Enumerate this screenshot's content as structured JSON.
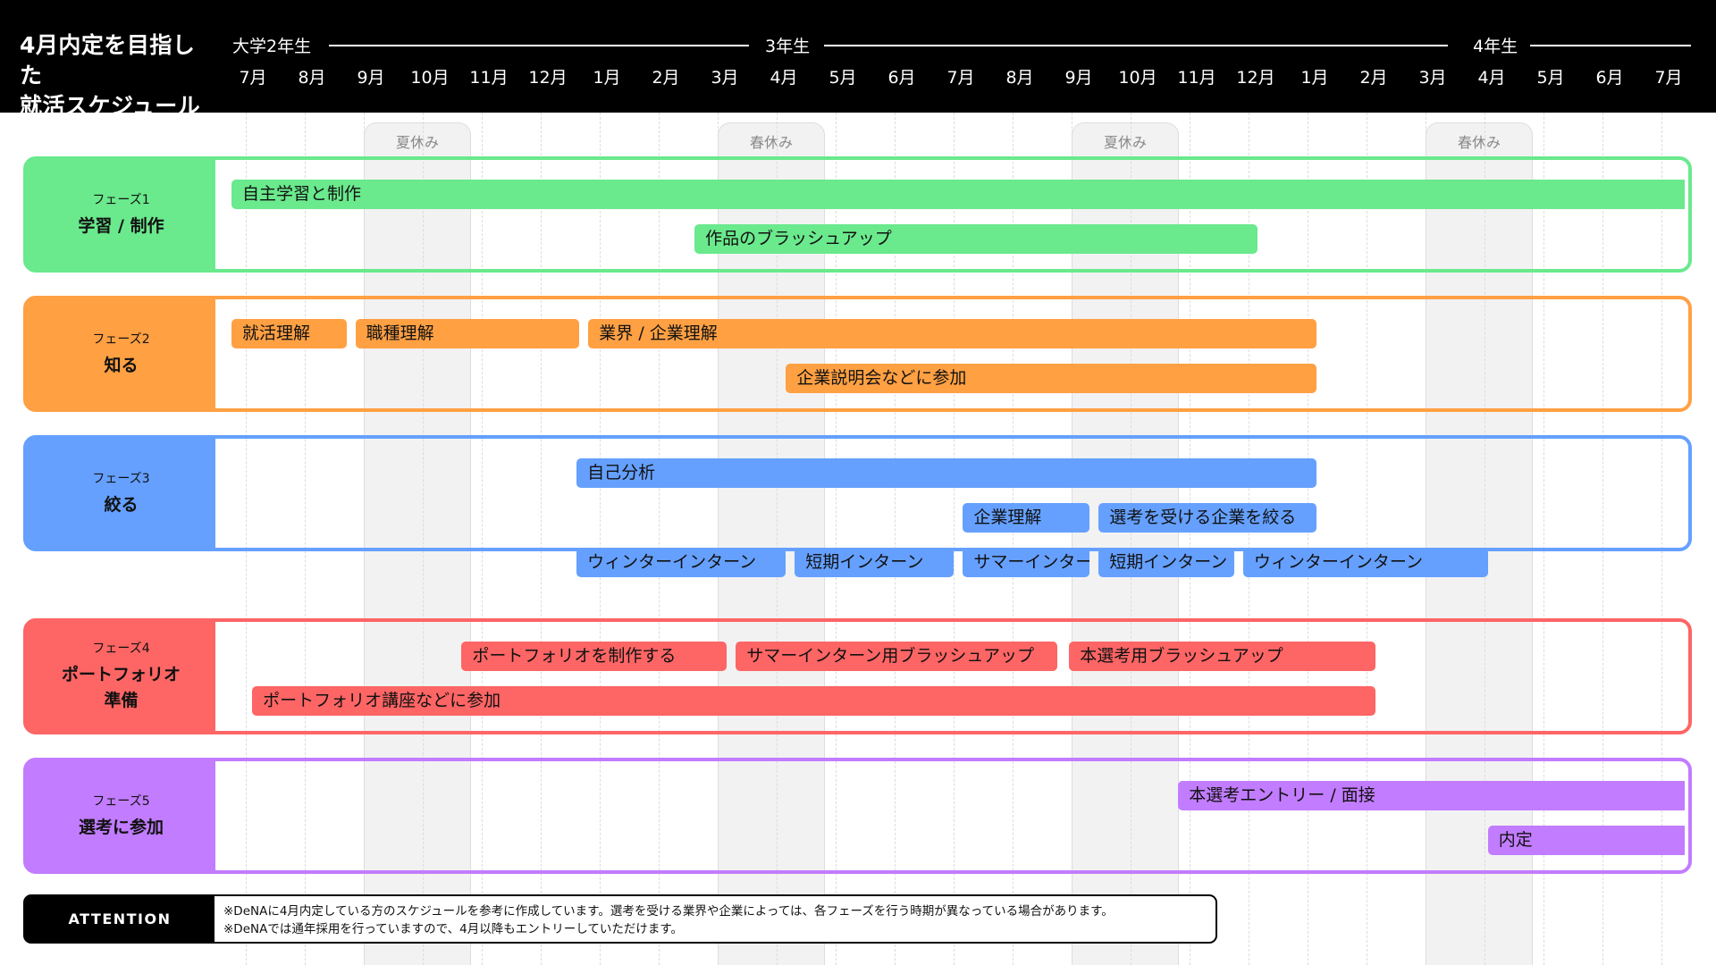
{
  "header": {
    "title_line1_prefix": "4",
    "title_line1_rest": "月内定を目指した",
    "title_line2": "就活スケジュール",
    "years": [
      {
        "label": "大学2年生",
        "start": 0
      },
      {
        "label": "3年生",
        "start": 9
      },
      {
        "label": "4年生",
        "start": 21
      }
    ],
    "months": [
      "7月",
      "8月",
      "9月",
      "10月",
      "11月",
      "12月",
      "1月",
      "2月",
      "3月",
      "4月",
      "5月",
      "6月",
      "7月",
      "8月",
      "9月",
      "10月",
      "11月",
      "12月",
      "1月",
      "2月",
      "3月",
      "4月",
      "5月",
      "6月",
      "7月"
    ]
  },
  "vacations": [
    {
      "label": "夏休み",
      "start": 1,
      "span": 2
    },
    {
      "label": "春休み",
      "start": 7,
      "span": 2
    },
    {
      "label": "夏休み",
      "start": 13,
      "span": 2
    },
    {
      "label": "春休み",
      "start": 19,
      "span": 2
    }
  ],
  "phases": [
    {
      "id": "phase1",
      "sub": "フェーズ1",
      "name": "学習 / 制作",
      "color": "#6ae98d",
      "tasks": [
        {
          "label": "自主学習と制作",
          "start": 0,
          "end": 25,
          "row": 0
        },
        {
          "label": "作品のブラッシュアップ",
          "start": 7.85,
          "end": 17.4,
          "row": 1
        }
      ]
    },
    {
      "id": "phase2",
      "sub": "フェーズ2",
      "name": "知る",
      "color": "#ffa043",
      "tasks": [
        {
          "label": "就活理解",
          "start": 0,
          "end": 1.95,
          "row": 0
        },
        {
          "label": "職種理解",
          "start": 2.1,
          "end": 5.9,
          "row": 0
        },
        {
          "label": "業界 / 企業理解",
          "start": 6.05,
          "end": 18.4,
          "row": 0
        },
        {
          "label": "企業説明会などに参加",
          "start": 9.4,
          "end": 18.4,
          "row": 1
        }
      ]
    },
    {
      "id": "phase3",
      "sub": "フェーズ3",
      "name": "絞る",
      "color": "#65a0ff",
      "tasks": [
        {
          "label": "自己分析",
          "start": 5.85,
          "end": 18.4,
          "row": 0
        },
        {
          "label": "企業理解",
          "start": 12.4,
          "end": 14.55,
          "row": 1
        },
        {
          "label": "選考を受ける企業を絞る",
          "start": 14.7,
          "end": 18.4,
          "row": 1
        },
        {
          "label": "ウィンターインターン",
          "start": 5.85,
          "end": 9.4,
          "row": 2
        },
        {
          "label": "短期インターン",
          "start": 9.55,
          "end": 12.25,
          "row": 2
        },
        {
          "label": "サマーインターン",
          "start": 12.4,
          "end": 14.55,
          "row": 2
        },
        {
          "label": "短期インターン",
          "start": 14.7,
          "end": 17.0,
          "row": 2
        },
        {
          "label": "ウィンターインターン",
          "start": 17.15,
          "end": 21.3,
          "row": 2
        }
      ]
    },
    {
      "id": "phase4",
      "sub": "フェーズ4",
      "name": "ポートフォリオ\n準備",
      "color": "#fe6565",
      "tasks": [
        {
          "label": "ポートフォリオを制作する",
          "start": 3.9,
          "end": 8.4,
          "row": 0
        },
        {
          "label": "サマーインターン用ブラッシュアップ",
          "start": 8.55,
          "end": 14.0,
          "row": 0
        },
        {
          "label": "本選考用ブラッシュアップ",
          "start": 14.2,
          "end": 19.4,
          "row": 0
        },
        {
          "label": "ポートフォリオ講座などに参加",
          "start": 0.35,
          "end": 19.4,
          "row": 1
        }
      ]
    },
    {
      "id": "phase5",
      "sub": "フェーズ5",
      "name": "選考に参加",
      "color": "#c27cff",
      "tasks": [
        {
          "label": "本選考エントリー / 面接",
          "start": 16.05,
          "end": 25,
          "row": 0
        },
        {
          "label": "内定",
          "start": 21.3,
          "end": 25,
          "row": 1
        }
      ]
    }
  ],
  "attention": {
    "badge": "ATTENTION",
    "line1": "※DeNAに4月内定している方のスケジュールを参考に作成しています。選考を受ける業界や企業によっては、各フェーズを行う時期が異なっている場合があります。",
    "line2": "※DeNAでは通年採用を行っていますので、4月以降もエントリーしていただけます。"
  }
}
